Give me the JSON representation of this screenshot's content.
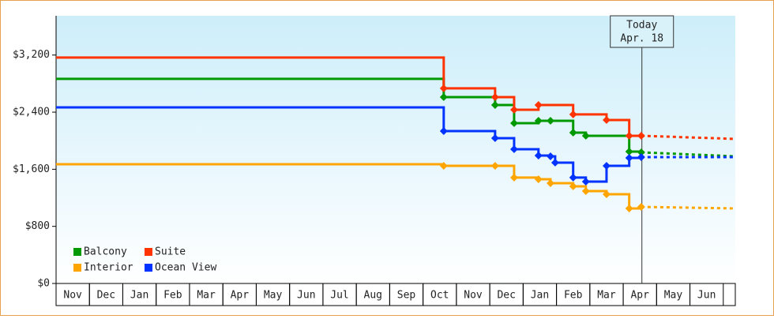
{
  "chart_data": {
    "type": "step-line",
    "xlim": [
      0,
      20.36
    ],
    "xticks": [
      {
        "value": 0.5,
        "label": "Nov"
      },
      {
        "value": 1.5,
        "label": "Dec"
      },
      {
        "value": 2.5,
        "label": "Jan"
      },
      {
        "value": 3.5,
        "label": "Feb"
      },
      {
        "value": 4.5,
        "label": "Mar"
      },
      {
        "value": 5.5,
        "label": "Apr"
      },
      {
        "value": 6.5,
        "label": "May"
      },
      {
        "value": 7.5,
        "label": "Jun"
      },
      {
        "value": 8.5,
        "label": "Jul"
      },
      {
        "value": 9.5,
        "label": "Aug"
      },
      {
        "value": 10.5,
        "label": "Sep"
      },
      {
        "value": 11.5,
        "label": "Oct"
      },
      {
        "value": 12.5,
        "label": "Nov"
      },
      {
        "value": 13.5,
        "label": "Dec"
      },
      {
        "value": 14.5,
        "label": "Jan"
      },
      {
        "value": 15.5,
        "label": "Feb"
      },
      {
        "value": 16.5,
        "label": "Mar"
      },
      {
        "value": 17.5,
        "label": "Apr"
      },
      {
        "value": 18.5,
        "label": "May"
      },
      {
        "value": 19.5,
        "label": "Jun"
      }
    ],
    "ylim": [
      0,
      3750
    ],
    "yticks": [
      {
        "value": 0,
        "label": "$0"
      },
      {
        "value": 800,
        "label": "$800"
      },
      {
        "value": 1600,
        "label": "$1,600"
      },
      {
        "value": 2400,
        "label": "$2,400"
      },
      {
        "value": 3200,
        "label": "$3,200"
      }
    ],
    "legend": "bottom-left",
    "annotation": {
      "x": 17.56,
      "lines": [
        "Today",
        "Apr. 18"
      ]
    },
    "forecast_x": [
      17.54,
      20.36
    ],
    "series": [
      {
        "name": "Balcony",
        "color": "#009900",
        "x": [
          0,
          11.62,
          13.16,
          13.73,
          14.46,
          14.82,
          15.5,
          15.88,
          17.18,
          17.54
        ],
        "values": [
          2866,
          2611,
          2500,
          2246,
          2279,
          2279,
          2113,
          2069,
          1848,
          1837
        ],
        "forecast": [
          1837,
          1781
        ]
      },
      {
        "name": "Suite",
        "color": "#ff3300",
        "x": [
          0,
          11.62,
          13.16,
          13.73,
          14.46,
          15.5,
          16.5,
          17.18,
          17.54
        ],
        "values": [
          3165,
          2733,
          2611,
          2434,
          2500,
          2368,
          2290,
          2069,
          2069
        ],
        "forecast": [
          2069,
          2025
        ]
      },
      {
        "name": "Interior",
        "color": "#ffa500",
        "x": [
          0,
          11.62,
          13.16,
          13.73,
          14.46,
          14.82,
          15.5,
          15.88,
          16.5,
          17.18,
          17.54
        ],
        "values": [
          1671,
          1648,
          1648,
          1483,
          1460,
          1405,
          1361,
          1294,
          1250,
          1051,
          1073
        ],
        "forecast": [
          1073,
          1051
        ]
      },
      {
        "name": "Ocean View",
        "color": "#0033ff",
        "x": [
          0,
          11.62,
          13.16,
          13.73,
          14.46,
          14.82,
          14.96,
          15.5,
          15.88,
          16.5,
          17.18,
          17.54
        ],
        "values": [
          2467,
          2135,
          2036,
          1881,
          1792,
          1781,
          1693,
          1483,
          1427,
          1648,
          1759,
          1770
        ],
        "forecast": [
          1770,
          1770
        ]
      }
    ]
  }
}
